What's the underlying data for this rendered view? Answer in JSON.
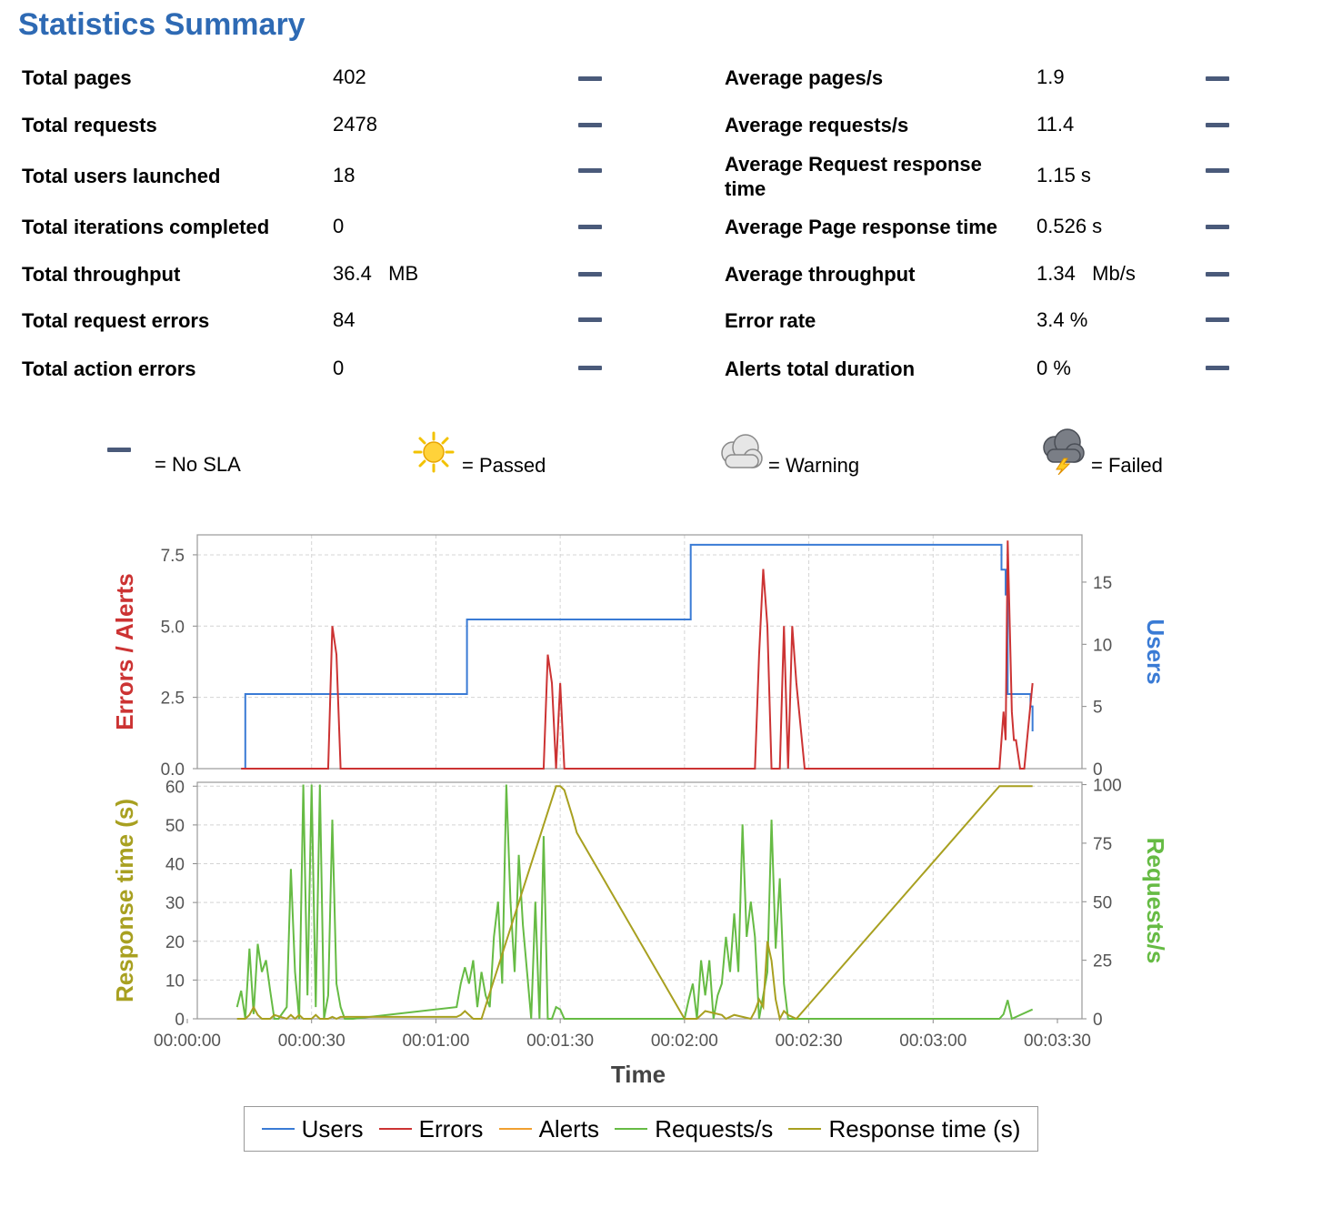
{
  "title": "Statistics Summary",
  "stats_left": [
    {
      "label": "Total pages",
      "value": "402"
    },
    {
      "label": "Total requests",
      "value": "2478"
    },
    {
      "label": "Total users launched",
      "value": "18"
    },
    {
      "label": "Total iterations completed",
      "value": "0"
    },
    {
      "label": "Total throughput",
      "value": "36.4   MB"
    },
    {
      "label": "Total request errors",
      "value": "84"
    },
    {
      "label": "Total action errors",
      "value": "0"
    }
  ],
  "stats_right": [
    {
      "label": "Average pages/s",
      "value": "1.9"
    },
    {
      "label": "Average requests/s",
      "value": "11.4"
    },
    {
      "label": "Average Request response time",
      "value": "1.15 s"
    },
    {
      "label": "Average Page response time",
      "value": "0.526 s"
    },
    {
      "label": "Average throughput",
      "value": "1.34   Mb/s"
    },
    {
      "label": "Error rate",
      "value": "3.4 %"
    },
    {
      "label": "Alerts total duration",
      "value": "0 %"
    }
  ],
  "sla_legend": {
    "no_sla": "= No SLA",
    "passed": "= Passed",
    "warning": "= Warning",
    "failed": "= Failed"
  },
  "colors": {
    "title": "#2e6ab4",
    "users": "#3a7bd5",
    "errors": "#cc3333",
    "alerts": "#f0a030",
    "requests": "#66bb44",
    "response": "#a8a020"
  },
  "chart_data": [
    {
      "type": "line",
      "panel": "top",
      "ylabel": "Errors / Alerts",
      "y2label": "Users",
      "ylim": [
        0,
        8.2
      ],
      "y2lim": [
        0,
        18.8
      ],
      "xlim": [
        0,
        210
      ],
      "y_ticks": [
        "0.0",
        "2.5",
        "5.0",
        "7.5"
      ],
      "y2_ticks": [
        "0",
        "5",
        "10",
        "15"
      ],
      "series": [
        {
          "name": "Users",
          "axis": "right",
          "step": true,
          "x": [
            13,
            14,
            67,
            67.5,
            121,
            121.5,
            196,
            196.5,
            197.5,
            198,
            198.5,
            203,
            203.5,
            204
          ],
          "y": [
            0,
            6,
            6,
            12,
            12,
            18,
            18,
            16,
            14,
            6,
            6,
            6,
            5,
            3
          ]
        },
        {
          "name": "Errors",
          "axis": "left",
          "x": [
            13,
            34,
            35,
            36,
            37,
            86,
            87,
            88,
            89,
            90,
            91,
            137,
            138,
            139,
            140,
            141,
            143,
            144,
            145,
            146,
            147,
            149,
            196,
            197,
            197.5,
            198,
            198.5,
            199,
            199.5,
            200,
            201,
            202,
            204
          ],
          "y": [
            0,
            0,
            5,
            4,
            0,
            0,
            4,
            3,
            0,
            3,
            0,
            0,
            4,
            7,
            5,
            0,
            0,
            5,
            0,
            5,
            3,
            0,
            0,
            2,
            1,
            8,
            5,
            2,
            1,
            1,
            0,
            0,
            3
          ]
        },
        {
          "name": "Alerts",
          "axis": "left",
          "x": [],
          "y": []
        }
      ]
    },
    {
      "type": "line",
      "panel": "bottom",
      "xlabel": "Time",
      "ylabel": "Response time (s)",
      "y2label": "Requests/s",
      "ylim": [
        0,
        61
      ],
      "y2lim": [
        0,
        101
      ],
      "xlim": [
        0,
        210
      ],
      "x_ticks": [
        "00:00:00",
        "00:00:30",
        "00:01:00",
        "00:01:30",
        "00:02:00",
        "00:02:30",
        "00:03:00",
        "00:03:30"
      ],
      "y_ticks": [
        "0",
        "10",
        "20",
        "30",
        "40",
        "50",
        "60"
      ],
      "y2_ticks": [
        "0",
        "25",
        "50",
        "75",
        "100"
      ],
      "series": [
        {
          "name": "Requests/s",
          "axis": "right",
          "x": [
            12,
            13,
            14,
            15,
            16,
            17,
            18,
            19,
            20,
            21,
            22,
            24,
            25,
            26,
            27,
            28,
            29,
            30,
            31,
            32,
            33,
            34,
            35,
            36,
            37,
            38,
            40,
            65,
            66,
            67,
            68,
            69,
            70,
            71,
            72,
            73,
            74,
            75,
            76,
            77,
            78,
            79,
            80,
            81,
            82,
            83,
            84,
            85,
            86,
            87,
            88,
            89,
            90,
            91,
            92,
            93,
            120,
            121,
            122,
            123,
            124,
            125,
            126,
            127,
            128,
            129,
            130,
            131,
            132,
            133,
            134,
            135,
            136,
            137,
            138,
            139,
            140,
            141,
            142,
            143,
            144,
            145,
            146,
            196,
            197,
            198,
            199,
            204
          ],
          "y": [
            5,
            12,
            0,
            30,
            2,
            32,
            20,
            25,
            12,
            0,
            0,
            5,
            64,
            20,
            0,
            100,
            10,
            100,
            5,
            100,
            0,
            10,
            85,
            15,
            5,
            0,
            0,
            5,
            15,
            22,
            15,
            25,
            5,
            20,
            10,
            5,
            35,
            50,
            15,
            100,
            50,
            20,
            70,
            40,
            20,
            0,
            50,
            0,
            78,
            0,
            0,
            5,
            4,
            0,
            0,
            0,
            0,
            8,
            15,
            0,
            25,
            10,
            25,
            0,
            10,
            15,
            35,
            20,
            45,
            20,
            83,
            35,
            50,
            35,
            0,
            10,
            20,
            85,
            30,
            60,
            15,
            0,
            0,
            0,
            2,
            8,
            0,
            4
          ]
        },
        {
          "name": "Response time (s)",
          "axis": "left",
          "x": [
            12,
            14,
            15,
            16,
            17,
            18,
            20,
            21,
            24,
            25,
            26,
            27,
            28,
            30,
            31,
            32,
            34,
            35,
            36,
            37,
            65,
            66,
            67,
            68,
            69,
            70,
            71,
            89,
            90,
            91,
            93,
            94,
            120,
            123,
            124,
            125,
            129,
            130,
            132,
            136,
            137,
            138,
            139,
            140,
            141,
            142,
            143,
            144,
            145,
            147,
            196,
            197,
            198,
            204
          ],
          "y": [
            0,
            0,
            1,
            3,
            1,
            0,
            0,
            1,
            0,
            1,
            0,
            1,
            0,
            0,
            1,
            0,
            0,
            0.5,
            0,
            0.5,
            0.5,
            1,
            2,
            1,
            0,
            0,
            0,
            60,
            60,
            59,
            52,
            48,
            0,
            0,
            1,
            2,
            1,
            0,
            1,
            0,
            2,
            5,
            3,
            20,
            15,
            5,
            0,
            2,
            1,
            0,
            60,
            60,
            60,
            60
          ]
        }
      ]
    }
  ],
  "legend": [
    "Users",
    "Errors",
    "Alerts",
    "Requests/s",
    "Response time (s)"
  ]
}
